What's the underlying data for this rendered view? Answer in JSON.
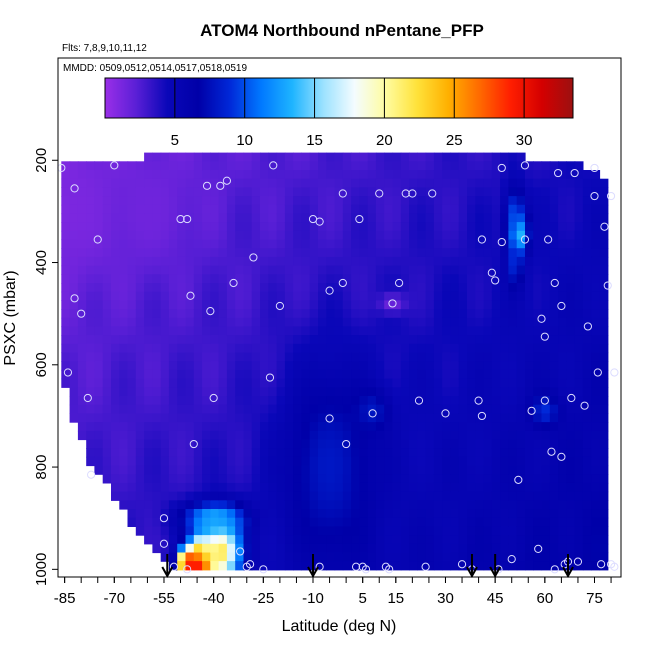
{
  "chart_data": {
    "type": "heatmap",
    "title": "ATOM4 Northbound nPentane_PFP",
    "flights_note": "Flts: 7,8,9,10,11,12",
    "dates_note": "MMDD: 0509,0512,0514,0517,0518,0519",
    "xlabel": "Latitude (deg N)",
    "ylabel": "PSXC (mbar)",
    "xlim": [
      -87,
      83
    ],
    "ylim": [
      1015,
      0
    ],
    "x_ticks": [
      -85,
      -70,
      -55,
      -40,
      -25,
      -10,
      5,
      15,
      30,
      45,
      60,
      75
    ],
    "x_tick_labels": [
      "-85",
      "-70",
      "-55",
      "-40",
      "-25",
      "-10",
      "5",
      "15",
      "30",
      "45",
      "60",
      "75"
    ],
    "y_ticks": [
      200,
      400,
      600,
      800,
      1000
    ],
    "y_tick_labels": [
      "200",
      "400",
      "600",
      "800",
      "1000"
    ],
    "colorbar": {
      "range": [
        0,
        33.5
      ],
      "ticks": [
        5,
        10,
        15,
        20,
        25,
        30
      ],
      "tick_labels": [
        "5",
        "10",
        "15",
        "20",
        "25",
        "30"
      ],
      "colors": [
        "#9a2fe8",
        "#5a1fd6",
        "#0a07b8",
        "#0000a8",
        "#0028d8",
        "#0078ff",
        "#1eb4ff",
        "#9ce2ff",
        "#f4fcff",
        "#fffca0",
        "#ffe23a",
        "#ffb000",
        "#ff6a00",
        "#ff1e00",
        "#d40000",
        "#9c1010"
      ]
    },
    "grid": false,
    "colored_field_envelope": [
      {
        "lat": -86,
        "pmin": 210,
        "pmax": 625
      },
      {
        "lat": -83,
        "pmin": 210,
        "pmax": 690
      },
      {
        "lat": -80,
        "pmin": 210,
        "pmax": 745
      },
      {
        "lat": -77,
        "pmin": 205,
        "pmax": 795
      },
      {
        "lat": -72,
        "pmin": 205,
        "pmax": 840
      },
      {
        "lat": -67,
        "pmin": 200,
        "pmax": 885
      },
      {
        "lat": -62,
        "pmin": 195,
        "pmax": 935
      },
      {
        "lat": -55,
        "pmin": 190,
        "pmax": 975
      },
      {
        "lat": -51,
        "pmin": 190,
        "pmax": 1005
      },
      {
        "lat": 45,
        "pmin": 190,
        "pmax": 1005
      },
      {
        "lat": 54,
        "pmin": 190,
        "pmax": 1005
      },
      {
        "lat": 57,
        "pmin": 210,
        "pmax": 1005
      },
      {
        "lat": 70,
        "pmin": 210,
        "pmax": 1005
      },
      {
        "lat": 75,
        "pmin": 220,
        "pmax": 1005
      },
      {
        "lat": 80,
        "pmin": 255,
        "pmax": 1000
      }
    ],
    "value_features": [
      {
        "lat": -48,
        "p": 985,
        "value": 33,
        "dlat": 2.5,
        "dp": 25
      },
      {
        "lat": -44,
        "p": 975,
        "value": 27,
        "dlat": 3.5,
        "dp": 40
      },
      {
        "lat": -38,
        "p": 965,
        "value": 22,
        "dlat": 6,
        "dp": 60
      },
      {
        "lat": -40,
        "p": 900,
        "value": 13,
        "dlat": 9,
        "dp": 30
      },
      {
        "lat": -45,
        "p": 1000,
        "value": 30,
        "dlat": 4,
        "dp": 20
      },
      {
        "lat": -5,
        "p": 800,
        "value": 8,
        "dlat": 14,
        "dp": 200
      },
      {
        "lat": 8,
        "p": 690,
        "value": 8,
        "dlat": 5,
        "dp": 40
      },
      {
        "lat": 52,
        "p": 345,
        "value": 20,
        "dlat": 2.5,
        "dp": 35
      },
      {
        "lat": 51,
        "p": 310,
        "value": 10,
        "dlat": 3,
        "dp": 60
      },
      {
        "lat": 51,
        "p": 400,
        "value": 9,
        "dlat": 2.5,
        "dp": 50
      },
      {
        "lat": 60,
        "p": 690,
        "value": 9,
        "dlat": 4,
        "dp": 30
      },
      {
        "lat": -85,
        "p": 300,
        "value": 1,
        "dlat": 14,
        "dp": 120
      },
      {
        "lat": -60,
        "p": 300,
        "value": 1.5,
        "dlat": 14,
        "dp": 100
      },
      {
        "lat": 14,
        "p": 480,
        "value": 1.5,
        "dlat": 4,
        "dp": 20
      }
    ],
    "sample_points": [
      {
        "lat": -86,
        "p": 215
      },
      {
        "lat": -84,
        "p": 615
      },
      {
        "lat": -82,
        "p": 255
      },
      {
        "lat": -80,
        "p": 500
      },
      {
        "lat": -82,
        "p": 470
      },
      {
        "lat": -78,
        "p": 665
      },
      {
        "lat": -77,
        "p": 815
      },
      {
        "lat": -75,
        "p": 355
      },
      {
        "lat": -70,
        "p": 210
      },
      {
        "lat": -55,
        "p": 900
      },
      {
        "lat": -55,
        "p": 950
      },
      {
        "lat": -52,
        "p": 995
      },
      {
        "lat": -48,
        "p": 1000
      },
      {
        "lat": -50,
        "p": 315
      },
      {
        "lat": -48,
        "p": 315
      },
      {
        "lat": -47,
        "p": 465
      },
      {
        "lat": -46,
        "p": 755
      },
      {
        "lat": -42,
        "p": 250
      },
      {
        "lat": -41,
        "p": 495
      },
      {
        "lat": -40,
        "p": 665
      },
      {
        "lat": -38,
        "p": 250
      },
      {
        "lat": -36,
        "p": 240
      },
      {
        "lat": -34,
        "p": 440
      },
      {
        "lat": -32,
        "p": 965
      },
      {
        "lat": -30,
        "p": 995
      },
      {
        "lat": -29,
        "p": 990
      },
      {
        "lat": -28,
        "p": 390
      },
      {
        "lat": -25,
        "p": 1000
      },
      {
        "lat": -23,
        "p": 625
      },
      {
        "lat": -22,
        "p": 210
      },
      {
        "lat": -20,
        "p": 485
      },
      {
        "lat": -10,
        "p": 315
      },
      {
        "lat": -8,
        "p": 995
      },
      {
        "lat": -8,
        "p": 320
      },
      {
        "lat": -5,
        "p": 455
      },
      {
        "lat": -5,
        "p": 705
      },
      {
        "lat": -1,
        "p": 265
      },
      {
        "lat": -1,
        "p": 440
      },
      {
        "lat": 0,
        "p": 755
      },
      {
        "lat": 3,
        "p": 995
      },
      {
        "lat": 4,
        "p": 315
      },
      {
        "lat": 5,
        "p": 995
      },
      {
        "lat": 6,
        "p": 1000
      },
      {
        "lat": 8,
        "p": 695
      },
      {
        "lat": 10,
        "p": 265
      },
      {
        "lat": 12,
        "p": 995
      },
      {
        "lat": 13,
        "p": 1000
      },
      {
        "lat": 14,
        "p": 480
      },
      {
        "lat": 16,
        "p": 440
      },
      {
        "lat": 18,
        "p": 265
      },
      {
        "lat": 20,
        "p": 265
      },
      {
        "lat": 22,
        "p": 670
      },
      {
        "lat": 24,
        "p": 995
      },
      {
        "lat": 26,
        "p": 265
      },
      {
        "lat": 30,
        "p": 695
      },
      {
        "lat": 35,
        "p": 990
      },
      {
        "lat": 38,
        "p": 1000
      },
      {
        "lat": 40,
        "p": 670
      },
      {
        "lat": 41,
        "p": 355
      },
      {
        "lat": 41,
        "p": 700
      },
      {
        "lat": 44,
        "p": 420
      },
      {
        "lat": 45,
        "p": 435
      },
      {
        "lat": 46,
        "p": 1000
      },
      {
        "lat": 47,
        "p": 215
      },
      {
        "lat": 47,
        "p": 360
      },
      {
        "lat": 50,
        "p": 980
      },
      {
        "lat": 52,
        "p": 825
      },
      {
        "lat": 54,
        "p": 210
      },
      {
        "lat": 54,
        "p": 355
      },
      {
        "lat": 56,
        "p": 690
      },
      {
        "lat": 58,
        "p": 960
      },
      {
        "lat": 59,
        "p": 510
      },
      {
        "lat": 60,
        "p": 545
      },
      {
        "lat": 60,
        "p": 670
      },
      {
        "lat": 61,
        "p": 355
      },
      {
        "lat": 62,
        "p": 770
      },
      {
        "lat": 63,
        "p": 440
      },
      {
        "lat": 63,
        "p": 1000
      },
      {
        "lat": 64,
        "p": 225
      },
      {
        "lat": 65,
        "p": 485
      },
      {
        "lat": 65,
        "p": 780
      },
      {
        "lat": 66,
        "p": 990
      },
      {
        "lat": 67,
        "p": 985
      },
      {
        "lat": 68,
        "p": 665
      },
      {
        "lat": 69,
        "p": 225
      },
      {
        "lat": 70,
        "p": 985
      },
      {
        "lat": 72,
        "p": 680
      },
      {
        "lat": 73,
        "p": 525
      },
      {
        "lat": 75,
        "p": 215
      },
      {
        "lat": 75,
        "p": 270
      },
      {
        "lat": 76,
        "p": 615
      },
      {
        "lat": 77,
        "p": 990
      },
      {
        "lat": 78,
        "p": 330
      },
      {
        "lat": 79,
        "p": 445
      },
      {
        "lat": 80,
        "p": 270
      },
      {
        "lat": 80,
        "p": 990
      },
      {
        "lat": 81,
        "p": 615
      },
      {
        "lat": 81,
        "p": 995
      }
    ],
    "flight_arrows_lat": [
      -54,
      -10,
      38,
      45,
      67
    ]
  }
}
